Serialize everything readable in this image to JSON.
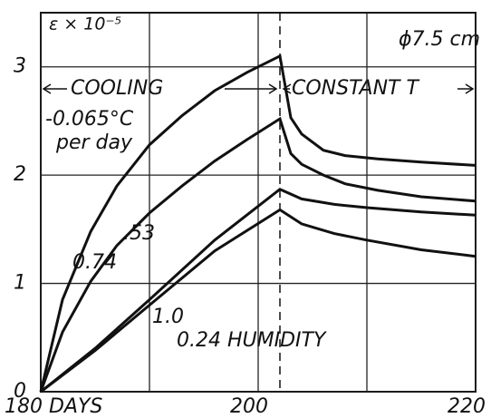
{
  "chart_data": {
    "type": "line",
    "ylabel": "ε × 10⁻⁵",
    "annotations": [
      "ϕ7.5 cm",
      "COOLING",
      "CONSTANT T",
      "-0.065°C",
      "per day"
    ],
    "xlim": [
      180,
      220
    ],
    "ylim": [
      0,
      3.5
    ],
    "xticks": [
      {
        "value": 180,
        "label": "180 DAYS"
      },
      200,
      220
    ],
    "xminor_ticks": [
      190,
      210
    ],
    "yticks": [
      0,
      1,
      2,
      3
    ],
    "vline": 202,
    "grid": true,
    "series": [
      {
        "name": "0.74",
        "color": "#111111",
        "x": [
          180,
          182,
          184.6,
          187,
          190,
          193,
          196,
          199,
          202,
          203,
          204,
          206,
          208,
          211,
          215,
          220
        ],
        "values": [
          0,
          0.85,
          1.48,
          1.9,
          2.28,
          2.55,
          2.78,
          2.95,
          3.1,
          2.53,
          2.38,
          2.23,
          2.18,
          2.15,
          2.12,
          2.09
        ]
      },
      {
        "name": ".53",
        "color": "#111111",
        "x": [
          180,
          182,
          184.6,
          187,
          190,
          193,
          196,
          199,
          202,
          203,
          204,
          206,
          208,
          211,
          215,
          220
        ],
        "values": [
          0,
          0.55,
          1.02,
          1.35,
          1.65,
          1.9,
          2.13,
          2.33,
          2.52,
          2.2,
          2.1,
          2.0,
          1.92,
          1.86,
          1.8,
          1.76
        ]
      },
      {
        "name": "1.0",
        "color": "#111111",
        "x": [
          180,
          185,
          190,
          196,
          202,
          204,
          207,
          210,
          215,
          220
        ],
        "values": [
          0,
          0.4,
          0.85,
          1.4,
          1.87,
          1.78,
          1.73,
          1.7,
          1.66,
          1.63
        ]
      },
      {
        "name": "0.24 HUMIDITY",
        "color": "#111111",
        "x": [
          180,
          185,
          190,
          196,
          202,
          204,
          207,
          210,
          215,
          220
        ],
        "values": [
          0,
          0.38,
          0.8,
          1.3,
          1.68,
          1.55,
          1.46,
          1.4,
          1.31,
          1.25
        ]
      }
    ]
  }
}
